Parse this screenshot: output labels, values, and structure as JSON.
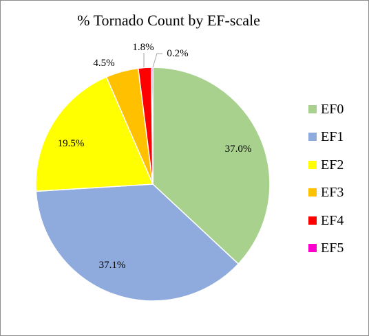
{
  "chart_data": {
    "type": "pie",
    "title": "% Tornado Count by EF-scale",
    "categories": [
      "EF0",
      "EF1",
      "EF2",
      "EF3",
      "EF4",
      "EF5"
    ],
    "values": [
      37.0,
      37.1,
      19.5,
      4.5,
      1.8,
      0.2
    ],
    "data_labels": [
      "37.0%",
      "37.1%",
      "19.5%",
      "4.5%",
      "1.8%",
      "0.2%"
    ],
    "colors": [
      "#a9d18e",
      "#8faadc",
      "#ffff00",
      "#ffc000",
      "#ff0000",
      "#ff00cc"
    ],
    "legend": "right",
    "start_angle": "12 o'clock, clockwise"
  }
}
